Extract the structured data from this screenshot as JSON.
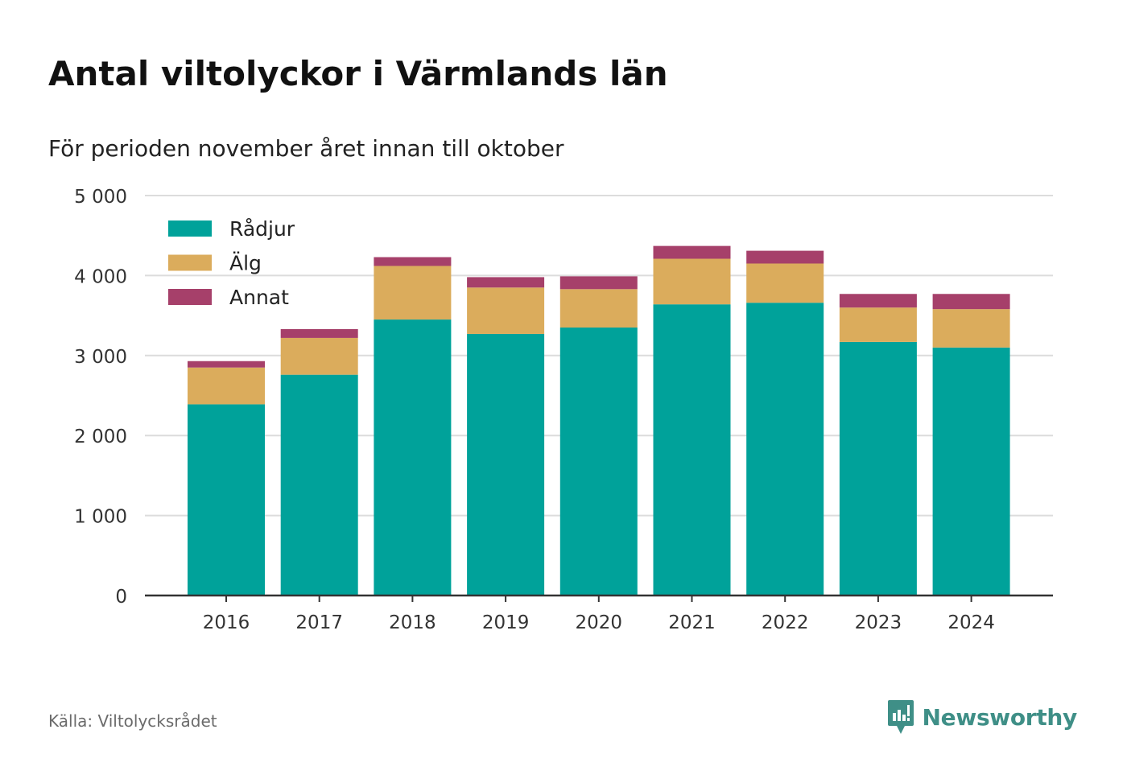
{
  "title": "Antal viltolyckor i Värmlands län",
  "subtitle": "För perioden november året innan till oktober",
  "source": "Källa: Viltolycksrådet",
  "brand": {
    "name": "Newsworthy",
    "icon": "newsworthy-logo-icon",
    "color": "#3f8f87"
  },
  "chart_data": {
    "type": "bar",
    "stacked": true,
    "categories": [
      "2016",
      "2017",
      "2018",
      "2019",
      "2020",
      "2021",
      "2022",
      "2023",
      "2024"
    ],
    "series": [
      {
        "name": "Rådjur",
        "color": "#00a29a",
        "values": [
          2390,
          2760,
          3450,
          3270,
          3350,
          3640,
          3660,
          3170,
          3100
        ]
      },
      {
        "name": "Älg",
        "color": "#dbac5c",
        "values": [
          460,
          460,
          670,
          580,
          480,
          570,
          490,
          430,
          480
        ]
      },
      {
        "name": "Annat",
        "color": "#a6406a",
        "values": [
          80,
          110,
          110,
          130,
          160,
          160,
          160,
          170,
          190
        ]
      }
    ],
    "ylim": [
      0,
      5000
    ],
    "yticks": [
      0,
      1000,
      2000,
      3000,
      4000,
      5000
    ],
    "ytick_labels": [
      "0",
      "1 000",
      "2 000",
      "3 000",
      "4 000",
      "5 000"
    ],
    "grid": true,
    "legend_position": "top-left",
    "xlabel": "",
    "ylabel": ""
  }
}
